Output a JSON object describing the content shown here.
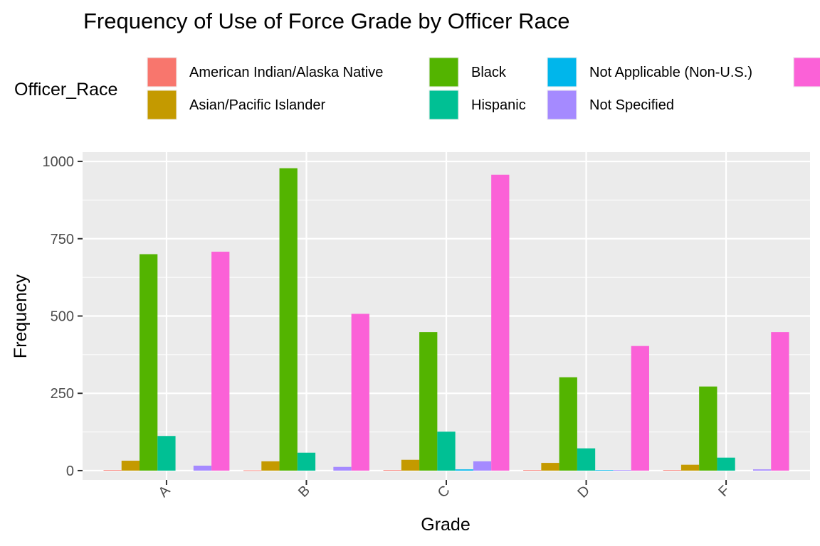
{
  "chart_data": {
    "type": "bar",
    "title": "Frequency of Use of Force Grade by Officer Race",
    "xlabel": "Grade",
    "ylabel": "Frequency",
    "ylim": [
      -30,
      1030
    ],
    "yticks": [
      0,
      250,
      500,
      750,
      1000
    ],
    "grid": true,
    "legend": {
      "title": "Officer_Race",
      "position": "top"
    },
    "categories": [
      "A",
      "B",
      "C",
      "D",
      "F"
    ],
    "series": [
      {
        "name": "American Indian/Alaska Native",
        "color": "#F8766D",
        "values": [
          2,
          1,
          2,
          2,
          2
        ]
      },
      {
        "name": "Asian/Pacific Islander",
        "color": "#C49A00",
        "values": [
          32,
          30,
          35,
          25,
          19
        ]
      },
      {
        "name": "Black",
        "color": "#53B400",
        "values": [
          700,
          978,
          448,
          302,
          272
        ]
      },
      {
        "name": "Hispanic",
        "color": "#00C094",
        "values": [
          112,
          58,
          126,
          72,
          42
        ]
      },
      {
        "name": "Not Applicable (Non-U.S.)",
        "color": "#00B6EB",
        "values": [
          0,
          0,
          4,
          2,
          0
        ]
      },
      {
        "name": "Not Specified",
        "color": "#A58AFF",
        "values": [
          16,
          12,
          30,
          2,
          4
        ]
      },
      {
        "name": "",
        "color": "#FB61D7",
        "values": [
          708,
          507,
          957,
          403,
          448
        ]
      }
    ]
  }
}
